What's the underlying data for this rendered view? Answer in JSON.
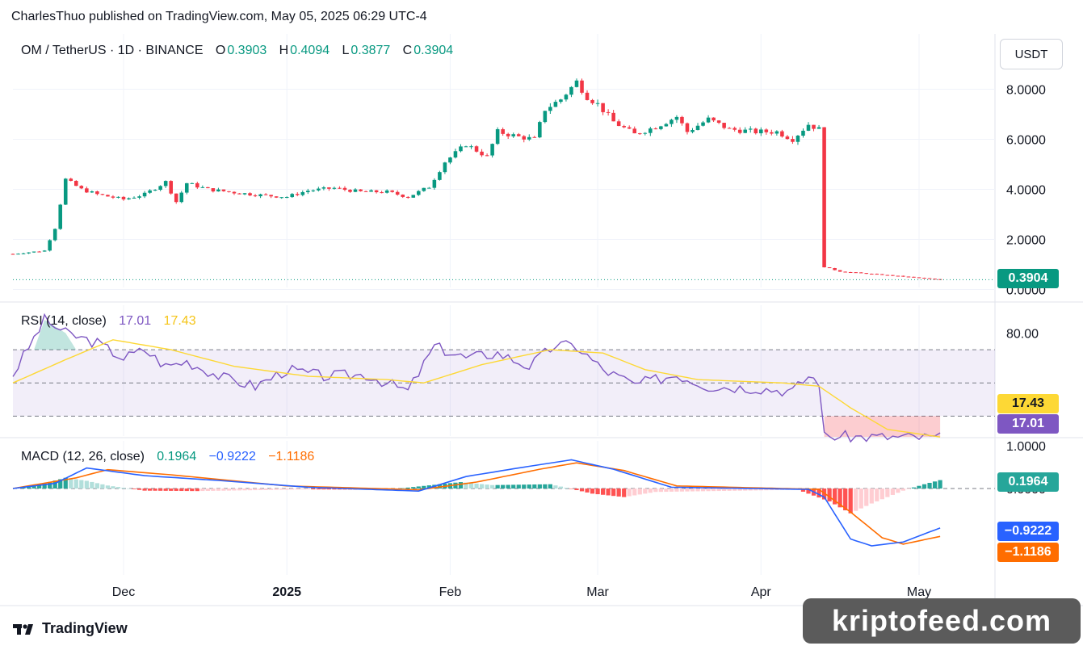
{
  "header": {
    "publisher_line": "CharlesThuo published on TradingView.com, May 05, 2025 06:29 UTC-4"
  },
  "price_legend": {
    "symbol": "OM / TetherUS · 1D · BINANCE",
    "o_label": "O",
    "o": "0.3903",
    "h_label": "H",
    "h": "0.4094",
    "l_label": "L",
    "l": "0.3877",
    "c_label": "C",
    "c": "0.3904"
  },
  "rsi_legend": {
    "label": "RSI (14, close)",
    "rsi": "17.01",
    "ma": "17.43"
  },
  "macd_legend": {
    "label": "MACD (12, 26, close)",
    "hist": "0.1964",
    "macd": "−0.9222",
    "signal": "−1.1186"
  },
  "unit": "USDT",
  "price_tag": "0.3904",
  "rsi_tags": {
    "ma": "17.43",
    "rsi": "17.01"
  },
  "macd_tags": {
    "hist": "0.1964",
    "macd": "−0.9222",
    "signal": "−1.1186"
  },
  "colors": {
    "up": "#089981",
    "down": "#f23645",
    "rsi": "#7e57c2",
    "rsi_ma": "#fdd835",
    "macd": "#2962ff",
    "signal": "#ff6d00"
  },
  "footer": {
    "brand": "TradingView"
  },
  "watermark": "kriptofeed.com",
  "chart_data": [
    {
      "type": "candlestick",
      "title": "OM / TetherUS · 1D · BINANCE",
      "y_ticks": [
        "8.0000",
        "6.0000",
        "4.0000",
        "2.0000",
        "0.0000"
      ],
      "ylim": [
        0,
        9.3
      ],
      "x_ticks": [
        "Dec",
        "2025",
        "Feb",
        "Mar",
        "Apr",
        "May"
      ],
      "x_tick_dates": [
        "2024-12-01",
        "2025-01-01",
        "2025-02-01",
        "2025-03-01",
        "2025-04-01",
        "2025-05-01"
      ],
      "last_price": 0.3904,
      "price_path": [
        [
          "2024-11-10",
          1.42
        ],
        [
          "2024-11-16",
          1.55
        ],
        [
          "2024-11-18",
          2.45
        ],
        [
          "2024-11-20",
          4.4
        ],
        [
          "2024-11-23",
          4.0
        ],
        [
          "2024-11-26",
          3.8
        ],
        [
          "2024-12-01",
          3.6
        ],
        [
          "2024-12-05",
          3.8
        ],
        [
          "2024-12-09",
          4.3
        ],
        [
          "2024-12-11",
          3.5
        ],
        [
          "2024-12-13",
          4.25
        ],
        [
          "2024-12-17",
          4.0
        ],
        [
          "2024-12-23",
          3.85
        ],
        [
          "2024-12-28",
          3.75
        ],
        [
          "2025-01-01",
          3.7
        ],
        [
          "2025-01-05",
          3.95
        ],
        [
          "2025-01-10",
          4.05
        ],
        [
          "2025-01-15",
          3.9
        ],
        [
          "2025-01-20",
          3.9
        ],
        [
          "2025-01-24",
          3.7
        ],
        [
          "2025-01-28",
          4.1
        ],
        [
          "2025-01-31",
          5.1
        ],
        [
          "2025-02-04",
          5.8
        ],
        [
          "2025-02-08",
          5.3
        ],
        [
          "2025-02-10",
          6.3
        ],
        [
          "2025-02-14",
          6.1
        ],
        [
          "2025-02-17",
          6.0
        ],
        [
          "2025-02-19",
          7.2
        ],
        [
          "2025-02-22",
          7.6
        ],
        [
          "2025-02-25",
          8.3
        ],
        [
          "2025-02-27",
          7.7
        ],
        [
          "2025-03-01",
          7.4
        ],
        [
          "2025-03-04",
          6.7
        ],
        [
          "2025-03-08",
          6.2
        ],
        [
          "2025-03-12",
          6.5
        ],
        [
          "2025-03-16",
          6.9
        ],
        [
          "2025-03-18",
          6.3
        ],
        [
          "2025-03-22",
          6.8
        ],
        [
          "2025-03-26",
          6.4
        ],
        [
          "2025-03-31",
          6.3
        ],
        [
          "2025-04-04",
          6.3
        ],
        [
          "2025-04-07",
          6.0
        ],
        [
          "2025-04-10",
          6.6
        ],
        [
          "2025-04-12",
          6.4
        ],
        [
          "2025-04-13",
          0.9
        ],
        [
          "2025-04-16",
          0.72
        ],
        [
          "2025-04-22",
          0.62
        ],
        [
          "2025-04-28",
          0.52
        ],
        [
          "2025-05-05",
          0.39
        ]
      ]
    },
    {
      "type": "line",
      "title": "RSI (14, close)",
      "y_ticks": [
        "80.00",
        "40.00"
      ],
      "ylim": [
        18,
        90
      ],
      "bands": [
        70,
        50,
        30
      ],
      "series": [
        {
          "name": "RSI",
          "points": [
            [
              "2024-11-10",
              55
            ],
            [
              "2024-11-16",
              88
            ],
            [
              "2024-11-20",
              80
            ],
            [
              "2024-11-26",
              74
            ],
            [
              "2024-12-01",
              65
            ],
            [
              "2024-12-05",
              70
            ],
            [
              "2024-12-09",
              60
            ],
            [
              "2024-12-13",
              63
            ],
            [
              "2024-12-20",
              53
            ],
            [
              "2024-12-26",
              48
            ],
            [
              "2025-01-01",
              58
            ],
            [
              "2025-01-08",
              54
            ],
            [
              "2025-01-16",
              55
            ],
            [
              "2025-01-24",
              45
            ],
            [
              "2025-01-29",
              72
            ],
            [
              "2025-02-04",
              65
            ],
            [
              "2025-02-10",
              68
            ],
            [
              "2025-02-16",
              60
            ],
            [
              "2025-02-21",
              73
            ],
            [
              "2025-02-25",
              72
            ],
            [
              "2025-03-02",
              58
            ],
            [
              "2025-03-08",
              49
            ],
            [
              "2025-03-16",
              55
            ],
            [
              "2025-03-22",
              48
            ],
            [
              "2025-03-31",
              47
            ],
            [
              "2025-04-07",
              45
            ],
            [
              "2025-04-10",
              54
            ],
            [
              "2025-04-12",
              51
            ],
            [
              "2025-04-13",
              18
            ],
            [
              "2025-04-20",
              17.5
            ],
            [
              "2025-05-05",
              17.01
            ]
          ]
        },
        {
          "name": "RSI-based MA",
          "points": [
            [
              "2024-11-10",
              50
            ],
            [
              "2024-11-20",
              64
            ],
            [
              "2024-11-29",
              76
            ],
            [
              "2024-12-10",
              70
            ],
            [
              "2024-12-22",
              60
            ],
            [
              "2025-01-05",
              54
            ],
            [
              "2025-01-20",
              52
            ],
            [
              "2025-01-27",
              50
            ],
            [
              "2025-02-07",
              61
            ],
            [
              "2025-02-20",
              70
            ],
            [
              "2025-03-02",
              68
            ],
            [
              "2025-03-10",
              58
            ],
            [
              "2025-03-20",
              52
            ],
            [
              "2025-04-05",
              50
            ],
            [
              "2025-04-12",
              48
            ],
            [
              "2025-04-18",
              35
            ],
            [
              "2025-04-25",
              22
            ],
            [
              "2025-05-05",
              17.43
            ]
          ]
        }
      ]
    },
    {
      "type": "bar+line",
      "title": "MACD (12, 26, close)",
      "y_ticks": [
        "1.0000",
        "0.0000"
      ],
      "ylim": [
        -1.5,
        1.1
      ],
      "series": [
        {
          "name": "MACD",
          "points": [
            [
              "2024-11-10",
              0.0
            ],
            [
              "2024-11-18",
              0.12
            ],
            [
              "2024-11-24",
              0.48
            ],
            [
              "2024-12-05",
              0.3
            ],
            [
              "2024-12-20",
              0.18
            ],
            [
              "2025-01-05",
              0.03
            ],
            [
              "2025-01-26",
              -0.06
            ],
            [
              "2025-02-04",
              0.28
            ],
            [
              "2025-02-14",
              0.48
            ],
            [
              "2025-02-24",
              0.67
            ],
            [
              "2025-03-04",
              0.45
            ],
            [
              "2025-03-15",
              0.03
            ],
            [
              "2025-04-10",
              -0.02
            ],
            [
              "2025-04-13",
              -0.2
            ],
            [
              "2025-04-18",
              -1.18
            ],
            [
              "2025-04-22",
              -1.34
            ],
            [
              "2025-04-28",
              -1.25
            ],
            [
              "2025-05-05",
              -0.9222
            ]
          ]
        },
        {
          "name": "Signal",
          "points": [
            [
              "2024-11-10",
              0.0
            ],
            [
              "2024-11-22",
              0.25
            ],
            [
              "2024-11-28",
              0.44
            ],
            [
              "2024-12-10",
              0.32
            ],
            [
              "2025-01-01",
              0.06
            ],
            [
              "2025-01-26",
              -0.03
            ],
            [
              "2025-02-06",
              0.15
            ],
            [
              "2025-02-18",
              0.45
            ],
            [
              "2025-02-25",
              0.6
            ],
            [
              "2025-03-06",
              0.42
            ],
            [
              "2025-03-16",
              0.06
            ],
            [
              "2025-04-12",
              -0.02
            ],
            [
              "2025-04-18",
              -0.55
            ],
            [
              "2025-04-24",
              -1.15
            ],
            [
              "2025-04-28",
              -1.3
            ],
            [
              "2025-05-05",
              -1.1186
            ]
          ]
        }
      ],
      "histogram": [
        [
          "2024-11-12",
          0.03
        ],
        [
          "2024-11-16",
          0.12
        ],
        [
          "2024-11-20",
          0.25
        ],
        [
          "2024-11-24",
          0.18
        ],
        [
          "2024-11-28",
          0.07
        ],
        [
          "2024-12-05",
          -0.05
        ],
        [
          "2024-12-15",
          -0.06
        ],
        [
          "2025-01-05",
          -0.02
        ],
        [
          "2025-01-20",
          -0.03
        ],
        [
          "2025-01-30",
          0.1
        ],
        [
          "2025-02-03",
          0.15
        ],
        [
          "2025-02-09",
          0.08
        ],
        [
          "2025-02-20",
          0.1
        ],
        [
          "2025-02-28",
          -0.12
        ],
        [
          "2025-03-06",
          -0.2
        ],
        [
          "2025-03-12",
          -0.08
        ],
        [
          "2025-04-08",
          -0.03
        ],
        [
          "2025-04-14",
          -0.3
        ],
        [
          "2025-04-18",
          -0.58
        ],
        [
          "2025-04-22",
          -0.35
        ],
        [
          "2025-04-28",
          -0.05
        ],
        [
          "2025-05-02",
          0.1
        ],
        [
          "2025-05-05",
          0.1964
        ]
      ]
    }
  ]
}
